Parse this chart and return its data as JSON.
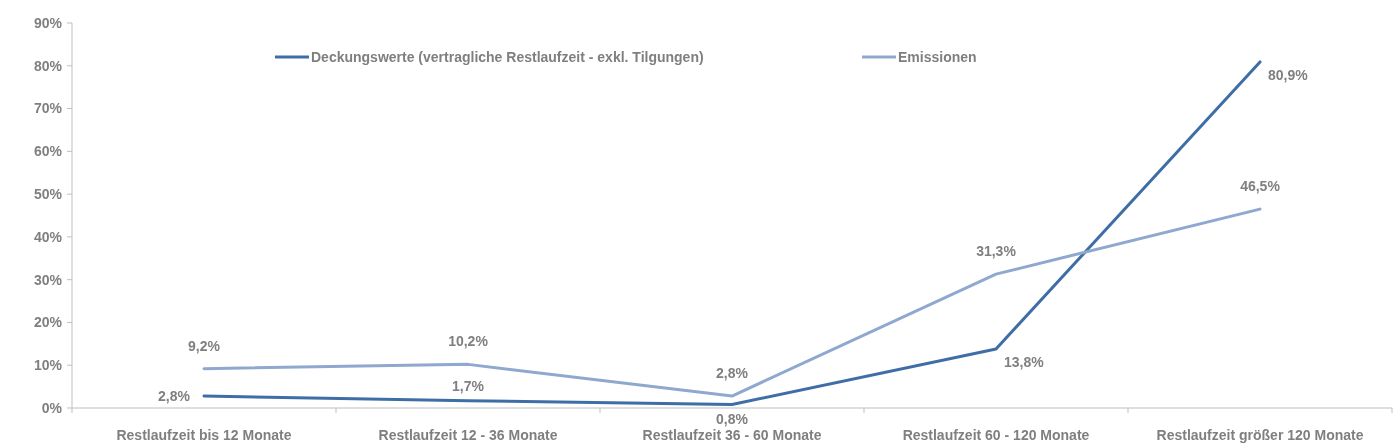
{
  "chart_data": {
    "type": "line",
    "categories": [
      "Restlaufzeit bis 12 Monate",
      "Restlaufzeit 12 - 36 Monate",
      "Restlaufzeit 36 - 60 Monate",
      "Restlaufzeit 60 - 120 Monate",
      "Restlaufzeit größer 120 Monate"
    ],
    "series": [
      {
        "name": "Deckungswerte (vertragliche Restlaufzeit - exkl. Tilgungen)",
        "color": "#3f6ea6",
        "values": [
          2.8,
          1.7,
          0.8,
          13.8,
          80.9
        ],
        "value_labels": [
          "2,8%",
          "1,7%",
          "0,8%",
          "13,8%",
          "80,9%"
        ]
      },
      {
        "name": "Emissionen",
        "color": "#8fa8cf",
        "values": [
          9.2,
          10.2,
          2.8,
          31.3,
          46.5
        ],
        "value_labels": [
          "9,2%",
          "10,2%",
          "2,8%",
          "31,3%",
          "46,5%"
        ]
      }
    ],
    "ylim": [
      0,
      90
    ],
    "yticks": [
      {
        "value": 0,
        "label": "0%"
      },
      {
        "value": 10,
        "label": "10%"
      },
      {
        "value": 20,
        "label": "20%"
      },
      {
        "value": 30,
        "label": "30%"
      },
      {
        "value": 40,
        "label": "40%"
      },
      {
        "value": 50,
        "label": "50%"
      },
      {
        "value": 60,
        "label": "60%"
      },
      {
        "value": 70,
        "label": "70%"
      },
      {
        "value": 80,
        "label": "80%"
      },
      {
        "value": 90,
        "label": "90%"
      }
    ],
    "legend": "top",
    "marker": "none",
    "line_style": "solid"
  }
}
